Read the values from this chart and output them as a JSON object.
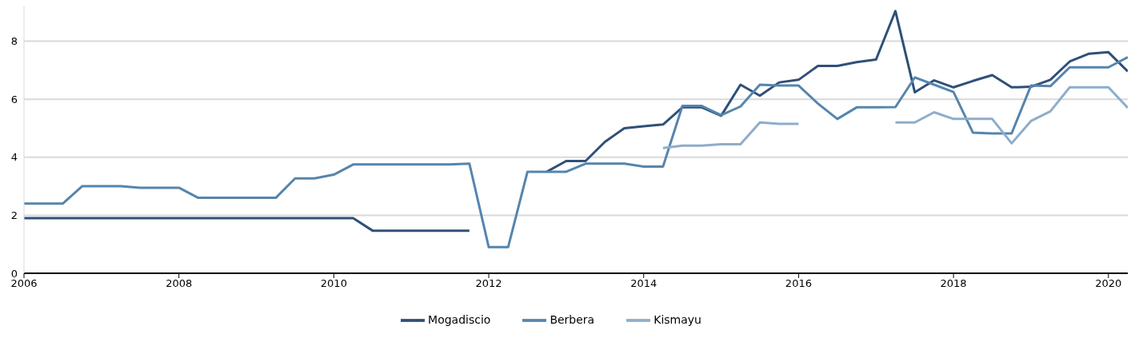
{
  "chart_data": {
    "type": "line",
    "x": [
      2006,
      2006.25,
      2006.5,
      2006.75,
      2007,
      2007.25,
      2007.5,
      2007.75,
      2008,
      2008.25,
      2008.5,
      2008.75,
      2009,
      2009.25,
      2009.5,
      2009.75,
      2010,
      2010.25,
      2010.5,
      2010.75,
      2011,
      2011.25,
      2011.5,
      2011.75,
      2012,
      2012.25,
      2012.5,
      2012.75,
      2013,
      2013.25,
      2013.5,
      2013.75,
      2014,
      2014.25,
      2014.5,
      2014.75,
      2015,
      2015.25,
      2015.5,
      2015.75,
      2016,
      2016.25,
      2016.5,
      2016.75,
      2017,
      2017.25,
      2017.5,
      2017.75,
      2018,
      2018.25,
      2018.5,
      2018.75,
      2019,
      2019.25,
      2019.5,
      2019.75,
      2020,
      2020.25
    ],
    "series": [
      {
        "name": "Mogadiscio",
        "color": "#2f5077",
        "values": [
          1.9,
          1.9,
          1.9,
          1.9,
          1.9,
          1.9,
          1.9,
          1.9,
          1.9,
          1.9,
          1.9,
          1.9,
          1.9,
          1.9,
          1.9,
          1.9,
          1.9,
          1.9,
          1.47,
          1.47,
          1.47,
          1.47,
          1.47,
          1.47,
          null,
          null,
          null,
          3.5,
          3.87,
          3.87,
          4.53,
          5.0,
          5.07,
          5.13,
          5.72,
          5.72,
          5.43,
          6.5,
          6.12,
          6.58,
          6.67,
          7.15,
          7.15,
          7.28,
          7.37,
          9.04,
          6.24,
          6.65,
          6.41,
          6.63,
          6.83,
          6.41,
          6.43,
          6.67,
          7.3,
          7.57,
          7.62,
          6.96
        ]
      },
      {
        "name": "Berbera",
        "color": "#5585ad",
        "values": [
          2.4,
          2.4,
          2.4,
          3.0,
          3.0,
          3.0,
          2.95,
          2.95,
          2.95,
          2.6,
          2.6,
          2.6,
          2.6,
          2.6,
          3.27,
          3.27,
          3.4,
          3.75,
          3.75,
          3.75,
          3.75,
          3.75,
          3.75,
          3.78,
          0.9,
          0.9,
          3.5,
          3.5,
          3.5,
          3.78,
          3.78,
          3.78,
          3.68,
          3.68,
          5.77,
          5.77,
          5.45,
          5.75,
          6.5,
          6.47,
          6.47,
          5.85,
          5.32,
          5.72,
          5.72,
          5.73,
          6.75,
          6.5,
          6.25,
          4.85,
          4.82,
          4.82,
          6.47,
          6.45,
          7.1,
          7.1,
          7.1,
          7.45
        ]
      },
      {
        "name": "Kismayu",
        "color": "#8eadca",
        "values": [
          null,
          null,
          null,
          null,
          null,
          null,
          null,
          null,
          null,
          null,
          null,
          null,
          null,
          null,
          null,
          null,
          null,
          null,
          null,
          null,
          null,
          null,
          null,
          null,
          null,
          null,
          null,
          null,
          null,
          null,
          null,
          null,
          null,
          4.32,
          4.4,
          4.4,
          4.45,
          4.45,
          5.2,
          5.15,
          5.15,
          null,
          null,
          null,
          null,
          5.2,
          5.2,
          5.55,
          5.32,
          5.32,
          5.32,
          4.48,
          5.25,
          5.58,
          6.41,
          6.41,
          6.41,
          5.7
        ]
      }
    ],
    "xlim": [
      2006,
      2020.25
    ],
    "xticks": [
      2006,
      2008,
      2010,
      2012,
      2014,
      2016,
      2018,
      2020
    ],
    "ylim": [
      0,
      9.2
    ],
    "yticks": [
      0,
      2,
      4,
      6,
      8
    ],
    "grid": "y",
    "legend": "bottom",
    "marker": "none",
    "line_style": "solid"
  }
}
